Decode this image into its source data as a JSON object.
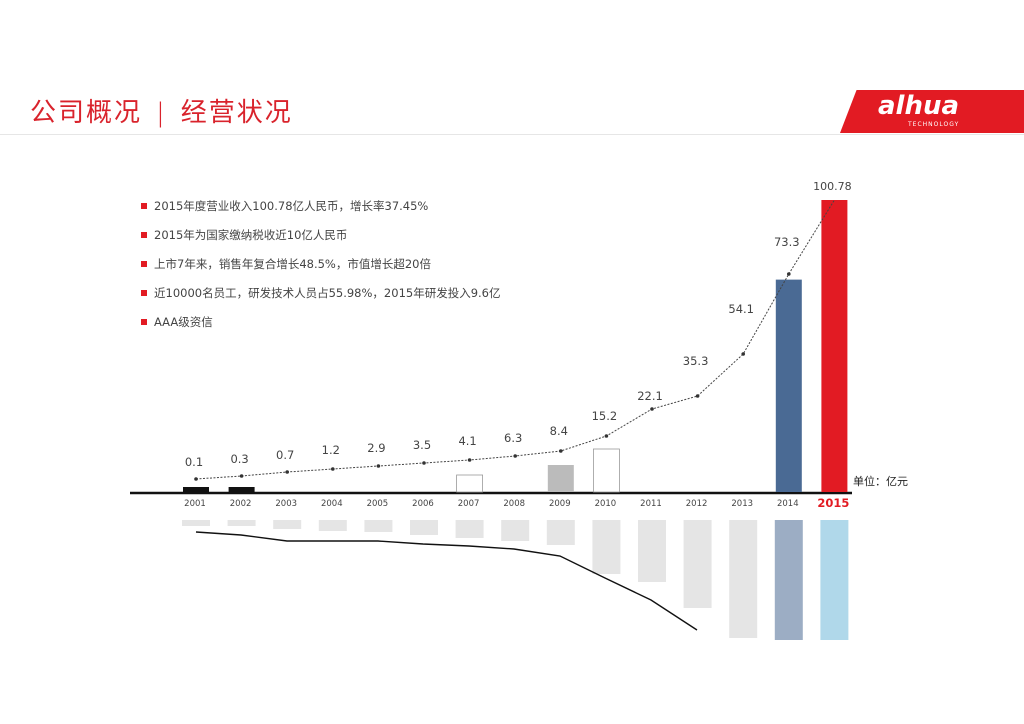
{
  "header": {
    "title_left": "公司概况",
    "separator": "|",
    "title_right": "经营状况",
    "logo": "alhua",
    "logo_sub": "TECHNOLOGY",
    "accent_color": "#e21b23"
  },
  "bullets": [
    "2015年度营业收入100.78亿人民币，增长率37.45%",
    "2015年为国家缴纳税收近10亿人民币",
    "上市7年来，销售年复合增长48.5%，市值增长超20倍",
    "近10000名员工，研发技术人员占55.98%，2015年研发投入9.6亿",
    "AAA级资信"
  ],
  "unit_label": "单位：亿元",
  "chart_data": {
    "type": "bar",
    "categories": [
      "2001",
      "2002",
      "2003",
      "2004",
      "2005",
      "2006",
      "2007",
      "2008",
      "2009",
      "2010",
      "2011",
      "2012",
      "2013",
      "2014",
      "2015"
    ],
    "values": [
      0.1,
      0.3,
      0.7,
      1.2,
      2.9,
      3.5,
      4.1,
      6.3,
      8.4,
      15.2,
      22.1,
      35.3,
      54.1,
      73.3,
      100.78
    ],
    "data_labels": [
      "0.1",
      "0.3",
      "0.7",
      "1.2",
      "2.9",
      "3.5",
      "4.1",
      "6.3",
      "8.4",
      "15.2",
      "22.1",
      "35.3",
      "54.1",
      "73.3",
      "100.78"
    ],
    "highlight_category": "2015",
    "bars_visible": [
      "2001",
      "2002",
      "2007",
      "2009",
      "2010",
      "2014",
      "2015"
    ],
    "colors": {
      "trend_line": "#444444",
      "bar_2014": "#4a6a94",
      "bar_2015": "#e21b23",
      "bar_2001_2002": "#111111",
      "bar_2009": "#bbbbbb",
      "axis": "#111111"
    },
    "ylim": [
      0,
      110
    ],
    "grid": false,
    "legend": "none"
  }
}
